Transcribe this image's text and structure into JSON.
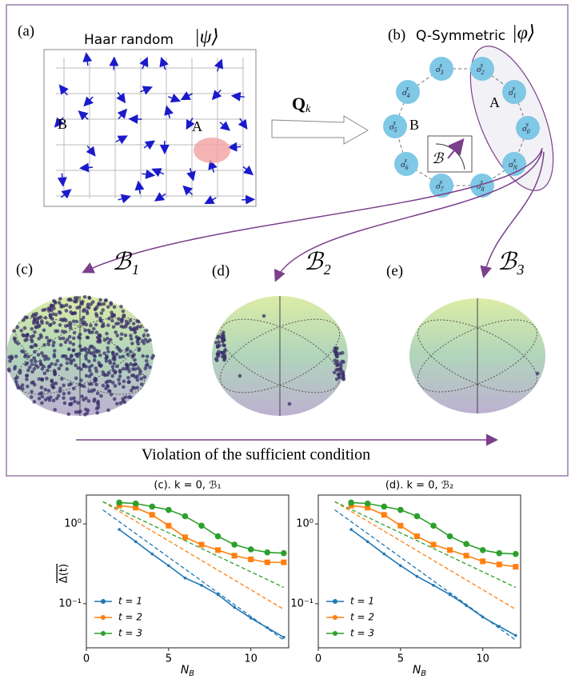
{
  "diagram": {
    "panel_a": {
      "label": "(a)",
      "title": "Haar random",
      "state": "|ψ⟩",
      "region_b": "B",
      "region_a": "A"
    },
    "operator": {
      "base": "Q",
      "sub": "k"
    },
    "panel_b": {
      "label": "(b)",
      "title": "Q-Symmetric",
      "state": "|φ⟩",
      "region_b": "B",
      "region_a": "A",
      "inset": "ℬ",
      "nodes": [
        {
          "base": "σ",
          "sup": "x",
          "sub": "3"
        },
        {
          "base": "σ",
          "sup": "x",
          "sub": "2"
        },
        {
          "base": "σ",
          "sup": "x",
          "sub": "1"
        },
        {
          "base": "σ",
          "sup": "x",
          "sub": "0"
        },
        {
          "base": "σ",
          "sup": "x",
          "sub": "N"
        },
        {
          "base": "σ",
          "sup": "x",
          "sub": "8"
        },
        {
          "base": "σ",
          "sup": "x",
          "sub": "7"
        },
        {
          "base": "σ",
          "sup": "x",
          "sub": "6"
        },
        {
          "base": "σ",
          "sup": "x",
          "sub": "5"
        },
        {
          "base": "σ",
          "sup": "x",
          "sub": "4"
        }
      ]
    },
    "panel_c": {
      "label": "(c)",
      "basis": "ℬ₁"
    },
    "panel_d": {
      "label": "(d)",
      "basis": "ℬ₂"
    },
    "panel_e": {
      "label": "(e)",
      "basis": "ℬ₃"
    },
    "caption": "Violation of the sufficient condition"
  },
  "chart_data": [
    {
      "type": "line",
      "title": "(c). k = 0, ℬ₁",
      "xlabel": "N",
      "xlabel_sub": "B",
      "ylabel": "Δ(t)",
      "log_y": true,
      "xlim": [
        0,
        12.3
      ],
      "xticks": [
        0,
        5,
        10
      ],
      "ylim": [
        0.028,
        2.3
      ],
      "yticks": [
        {
          "value": 1,
          "label": "10⁰"
        },
        {
          "value": 0.1,
          "label": "10⁻¹"
        }
      ],
      "legend": "lower left",
      "x": [
        2,
        3,
        4,
        5,
        6,
        7,
        8,
        9,
        10,
        11,
        12
      ],
      "series": [
        {
          "name": "t = 1",
          "color": "#1f77b4",
          "marker": "dot",
          "values": [
            0.85,
            0.6,
            0.42,
            0.3,
            0.21,
            0.17,
            0.13,
            0.09,
            0.066,
            0.05,
            0.038
          ]
        },
        {
          "name": "t = 2",
          "color": "#ff7f0e",
          "marker": "square",
          "values": [
            1.7,
            1.6,
            1.3,
            0.95,
            0.68,
            0.55,
            0.47,
            0.4,
            0.36,
            0.33,
            0.33
          ]
        },
        {
          "name": "t = 3",
          "color": "#2ca02c",
          "marker": "circle",
          "values": [
            1.85,
            1.8,
            1.65,
            1.5,
            1.25,
            0.95,
            0.7,
            0.55,
            0.48,
            0.44,
            0.43
          ]
        }
      ],
      "fits": [
        {
          "color": "#1f77b4",
          "x": [
            1,
            12
          ],
          "values": [
            1.5,
            0.035
          ]
        },
        {
          "color": "#ff7f0e",
          "x": [
            1,
            12
          ],
          "values": [
            1.9,
            0.085
          ]
        },
        {
          "color": "#2ca02c",
          "x": [
            1,
            12
          ],
          "values": [
            1.9,
            0.16
          ]
        }
      ]
    },
    {
      "type": "line",
      "title": "(d). k = 0, ℬ₂",
      "xlabel": "N",
      "xlabel_sub": "B",
      "log_y": true,
      "xlim": [
        0,
        12.3
      ],
      "xticks": [
        0,
        5,
        10
      ],
      "ylim": [
        0.028,
        2.3
      ],
      "yticks": [
        {
          "value": 1,
          "label": "10⁰"
        },
        {
          "value": 0.1,
          "label": "10⁻¹"
        }
      ],
      "legend": "lower left",
      "x": [
        2,
        3,
        4,
        5,
        6,
        7,
        8,
        9,
        10,
        11,
        12
      ],
      "series": [
        {
          "name": "t = 1",
          "color": "#1f77b4",
          "marker": "dot",
          "values": [
            0.85,
            0.6,
            0.42,
            0.3,
            0.22,
            0.17,
            0.13,
            0.095,
            0.068,
            0.052,
            0.04
          ]
        },
        {
          "name": "t = 2",
          "color": "#ff7f0e",
          "marker": "square",
          "values": [
            1.7,
            1.6,
            1.3,
            0.95,
            0.7,
            0.55,
            0.47,
            0.4,
            0.34,
            0.31,
            0.29
          ]
        },
        {
          "name": "t = 3",
          "color": "#2ca02c",
          "marker": "circle",
          "values": [
            1.85,
            1.8,
            1.65,
            1.5,
            1.25,
            0.95,
            0.7,
            0.56,
            0.47,
            0.43,
            0.42
          ]
        }
      ],
      "fits": [
        {
          "color": "#1f77b4",
          "x": [
            1,
            12
          ],
          "values": [
            1.5,
            0.035
          ]
        },
        {
          "color": "#ff7f0e",
          "x": [
            1,
            12
          ],
          "values": [
            1.9,
            0.085
          ]
        },
        {
          "color": "#2ca02c",
          "x": [
            1,
            12
          ],
          "values": [
            1.9,
            0.16
          ]
        }
      ]
    }
  ]
}
